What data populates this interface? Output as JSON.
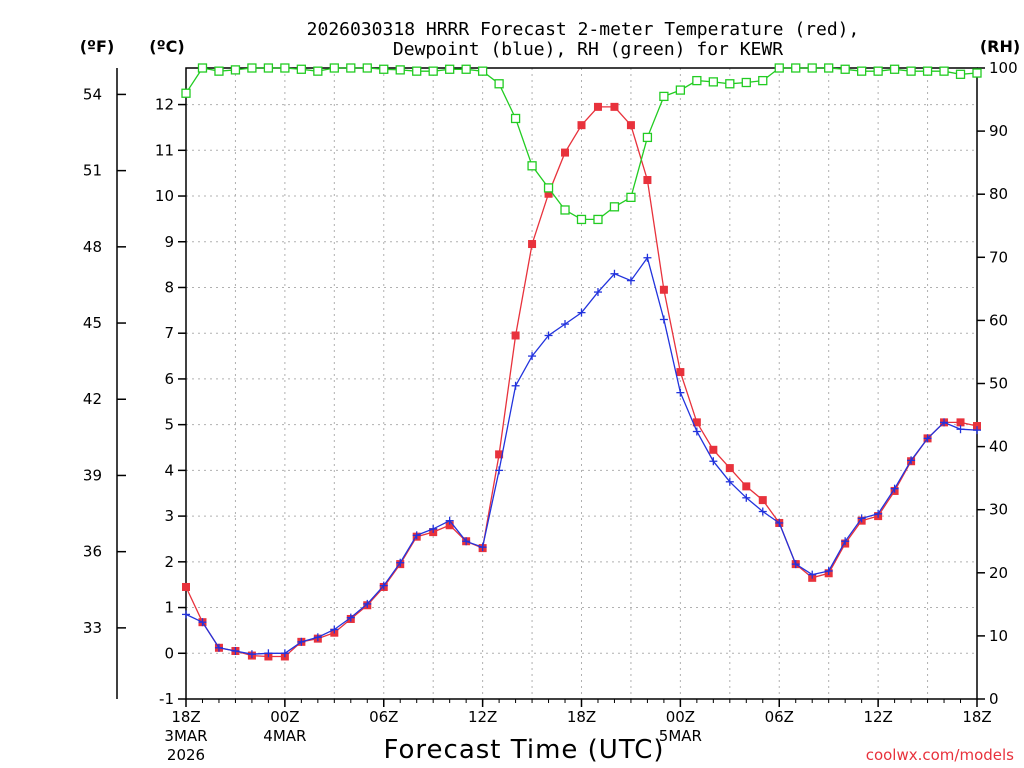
{
  "chart_data": {
    "type": "line",
    "title_line1": "2026030318 HRRR Forecast 2-meter Temperature (red),",
    "title_line2": "Dewpoint (blue), RH (green) for KEWR",
    "xlabel": "Forecast Time (UTC)",
    "watermark": "coolwx.com/models",
    "left_unit_f": "(ºF)",
    "left_unit_c": "(ºC)",
    "right_unit": "(RH)",
    "x_range": [
      0,
      48
    ],
    "y_left_c_range": [
      -1,
      12.8
    ],
    "y_right_rh_range": [
      0,
      100
    ],
    "x_ticks": [
      {
        "x": 0,
        "label": "18Z",
        "sub1": "3MAR",
        "sub2": "2026"
      },
      {
        "x": 6,
        "label": "00Z",
        "sub1": "4MAR",
        "sub2": ""
      },
      {
        "x": 12,
        "label": "06Z",
        "sub1": "",
        "sub2": ""
      },
      {
        "x": 18,
        "label": "12Z",
        "sub1": "",
        "sub2": ""
      },
      {
        "x": 24,
        "label": "18Z",
        "sub1": "",
        "sub2": ""
      },
      {
        "x": 30,
        "label": "00Z",
        "sub1": "5MAR",
        "sub2": ""
      },
      {
        "x": 36,
        "label": "06Z",
        "sub1": "",
        "sub2": ""
      },
      {
        "x": 42,
        "label": "12Z",
        "sub1": "",
        "sub2": ""
      },
      {
        "x": 48,
        "label": "18Z",
        "sub1": "",
        "sub2": ""
      }
    ],
    "y_ticks_c": [
      "-1",
      "0",
      "1",
      "2",
      "3",
      "4",
      "5",
      "6",
      "7",
      "8",
      "9",
      "10",
      "11",
      "12"
    ],
    "y_ticks_f": [
      "33",
      "36",
      "39",
      "42",
      "45",
      "48",
      "51",
      "54"
    ],
    "y_ticks_rh": [
      "0",
      "10",
      "20",
      "30",
      "40",
      "50",
      "60",
      "70",
      "80",
      "90",
      "100"
    ],
    "series": [
      {
        "name": "Temperature",
        "color": "#e8323c",
        "marker": "square-filled",
        "values": [
          1.45,
          0.68,
          0.12,
          0.05,
          -0.05,
          -0.07,
          -0.07,
          0.25,
          0.32,
          0.45,
          0.75,
          1.05,
          1.45,
          1.95,
          2.55,
          2.65,
          2.8,
          2.45,
          2.3,
          4.35,
          6.95,
          8.95,
          10.05,
          10.95,
          11.55,
          11.95,
          11.95,
          11.55,
          10.35,
          7.95,
          6.15,
          5.05,
          4.45,
          4.05,
          3.65,
          3.35,
          2.85,
          1.95,
          1.65,
          1.75,
          2.4,
          2.9,
          3.0,
          3.55,
          4.2,
          4.7,
          5.05,
          5.05,
          4.97
        ]
      },
      {
        "name": "Dewpoint",
        "color": "#2233dd",
        "marker": "plus",
        "values": [
          0.85,
          0.68,
          0.12,
          0.05,
          -0.02,
          0.0,
          0.0,
          0.25,
          0.35,
          0.52,
          0.78,
          1.08,
          1.48,
          1.98,
          2.58,
          2.72,
          2.9,
          2.45,
          2.32,
          4.0,
          5.85,
          6.5,
          6.95,
          7.2,
          7.45,
          7.9,
          8.3,
          8.15,
          8.65,
          7.3,
          5.7,
          4.85,
          4.2,
          3.75,
          3.4,
          3.1,
          2.85,
          1.95,
          1.72,
          1.8,
          2.45,
          2.95,
          3.05,
          3.6,
          4.22,
          4.7,
          5.05,
          4.9,
          4.88
        ]
      },
      {
        "name": "RH",
        "color": "#22cc22",
        "marker": "square-open",
        "axis": "right",
        "values": [
          96,
          100,
          99.5,
          99.7,
          100,
          100,
          100,
          99.8,
          99.5,
          100,
          100,
          100,
          99.8,
          99.7,
          99.5,
          99.5,
          99.8,
          99.8,
          99.5,
          97.5,
          92,
          84.5,
          81,
          77.5,
          76,
          76,
          78,
          79.5,
          89,
          95.5,
          96.5,
          98,
          97.8,
          97.5,
          97.7,
          98,
          100,
          100,
          100,
          100,
          99.8,
          99.5,
          99.5,
          99.8,
          99.5,
          99.5,
          99.5,
          99,
          99.2
        ]
      }
    ]
  }
}
